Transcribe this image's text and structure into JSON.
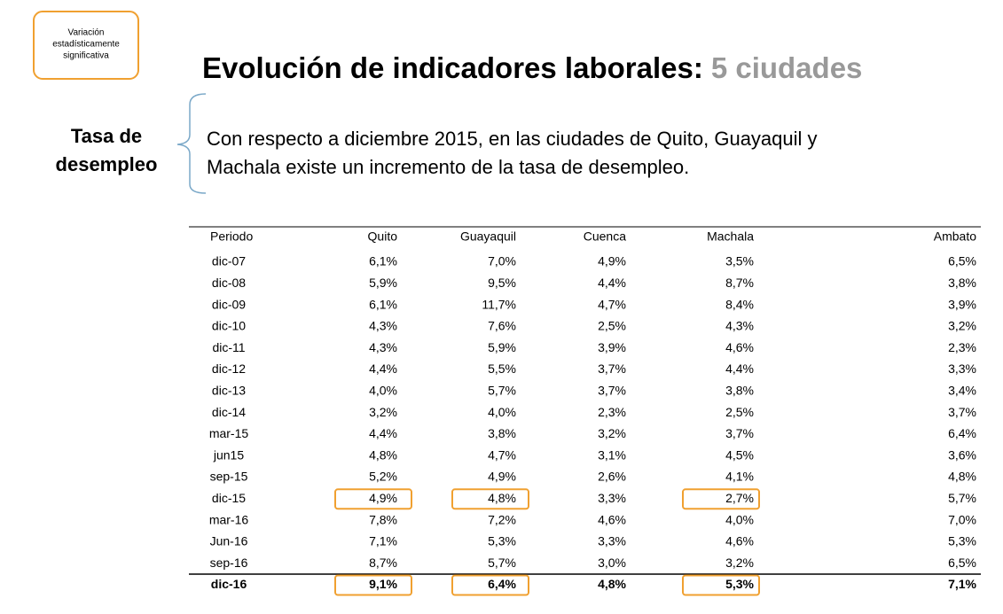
{
  "legend_note": [
    "Variación",
    "estadísticamente",
    "significativa"
  ],
  "header": {
    "title": "Evolución de indicadores laborales:",
    "title_highlight": "5 ciudades"
  },
  "label": [
    "Tasa de",
    "desempleo"
  ],
  "description": [
    "Con respecto a diciembre 2015, en las ciudades de Quito, Guayaquil y",
    "Machala existe un incremento de la tasa de desempleo."
  ],
  "table": {
    "columns": [
      "Periodo",
      "Quito",
      "Guayaquil",
      "Cuenca",
      "Machala",
      "Ambato"
    ],
    "rows": [
      [
        "dic-07",
        "6,1%",
        "7,0%",
        "4,9%",
        "3,5%",
        "6,5%"
      ],
      [
        "dic-08",
        "5,9%",
        "9,5%",
        "4,4%",
        "8,7%",
        "3,8%"
      ],
      [
        "dic-09",
        "6,1%",
        "11,7%",
        "4,7%",
        "8,4%",
        "3,9%"
      ],
      [
        "dic-10",
        "4,3%",
        "7,6%",
        "2,5%",
        "4,3%",
        "3,2%"
      ],
      [
        "dic-11",
        "4,3%",
        "5,9%",
        "3,9%",
        "4,6%",
        "2,3%"
      ],
      [
        "dic-12",
        "4,4%",
        "5,5%",
        "3,7%",
        "4,4%",
        "3,3%"
      ],
      [
        "dic-13",
        "4,0%",
        "5,7%",
        "3,7%",
        "3,8%",
        "3,4%"
      ],
      [
        "dic-14",
        "3,2%",
        "4,0%",
        "2,3%",
        "2,5%",
        "3,7%"
      ],
      [
        "mar-15",
        "4,4%",
        "3,8%",
        "3,2%",
        "3,7%",
        "6,4%"
      ],
      [
        "jun15",
        "4,8%",
        "4,7%",
        "3,1%",
        "4,5%",
        "3,6%"
      ],
      [
        "sep-15",
        "5,2%",
        "4,9%",
        "2,6%",
        "4,1%",
        "4,8%"
      ],
      [
        "dic-15",
        "4,9%",
        "4,8%",
        "3,3%",
        "2,7%",
        "5,7%"
      ],
      [
        "mar-16",
        "7,8%",
        "7,2%",
        "4,6%",
        "4,0%",
        "7,0%"
      ],
      [
        "Jun-16",
        "7,1%",
        "5,3%",
        "3,3%",
        "4,6%",
        "5,3%"
      ],
      [
        "sep-16",
        "8,7%",
        "5,7%",
        "3,0%",
        "3,2%",
        "6,5%"
      ],
      [
        "dic-16",
        "9,1%",
        "6,4%",
        "4,8%",
        "5,3%",
        "7,1%"
      ]
    ]
  }
}
